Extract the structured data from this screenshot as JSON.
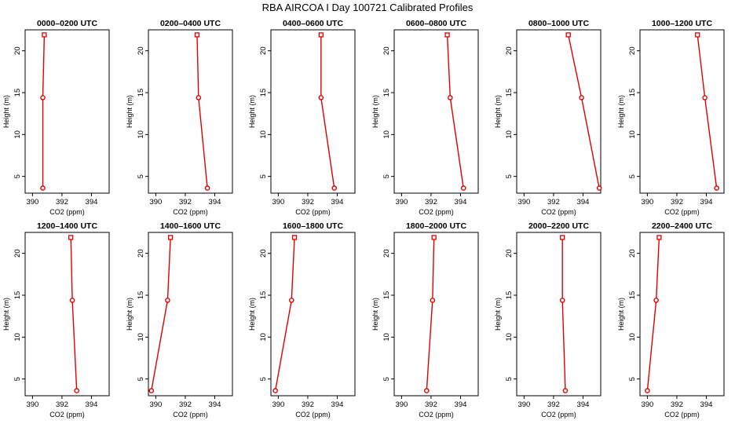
{
  "figure": {
    "title": "RBA AIRCOA I  Day 100721  Calibrated Profiles"
  },
  "colors": {
    "series": "#e00000",
    "axis": "#000000"
  },
  "chart_data": [
    {
      "type": "line",
      "title": "0000–0200 UTC",
      "xlabel": "CO2 (ppm)",
      "ylabel": "Height (m)",
      "xlim": [
        389.5,
        395.2
      ],
      "ylim": [
        3,
        22.5
      ],
      "xticks": [
        390,
        392,
        394
      ],
      "yticks": [
        5,
        10,
        15,
        20
      ],
      "x": [
        390.8,
        390.7,
        390.7
      ],
      "y": [
        21.9,
        14.4,
        3.6
      ]
    },
    {
      "type": "line",
      "title": "0200–0400 UTC",
      "xlabel": "CO2 (ppm)",
      "ylabel": "Height (m)",
      "xlim": [
        389.5,
        395.2
      ],
      "ylim": [
        3,
        22.5
      ],
      "xticks": [
        390,
        392,
        394
      ],
      "yticks": [
        5,
        10,
        15,
        20
      ],
      "x": [
        392.8,
        392.9,
        393.5
      ],
      "y": [
        21.9,
        14.4,
        3.6
      ]
    },
    {
      "type": "line",
      "title": "0400–0600 UTC",
      "xlabel": "CO2 (ppm)",
      "ylabel": "Height (m)",
      "xlim": [
        389.5,
        395.2
      ],
      "ylim": [
        3,
        22.5
      ],
      "xticks": [
        390,
        392,
        394
      ],
      "yticks": [
        5,
        10,
        15,
        20
      ],
      "x": [
        392.9,
        392.9,
        393.8
      ],
      "y": [
        21.9,
        14.4,
        3.6
      ]
    },
    {
      "type": "line",
      "title": "0600–0800 UTC",
      "xlabel": "CO2 (ppm)",
      "ylabel": "Height (m)",
      "xlim": [
        389.5,
        395.2
      ],
      "ylim": [
        3,
        22.5
      ],
      "xticks": [
        390,
        392,
        394
      ],
      "yticks": [
        5,
        10,
        15,
        20
      ],
      "x": [
        393.1,
        393.3,
        394.2
      ],
      "y": [
        21.9,
        14.4,
        3.6
      ]
    },
    {
      "type": "line",
      "title": "0800–1000 UTC",
      "xlabel": "CO2 (ppm)",
      "ylabel": "Height (m)",
      "xlim": [
        389.5,
        395.2
      ],
      "ylim": [
        3,
        22.5
      ],
      "xticks": [
        390,
        392,
        394
      ],
      "yticks": [
        5,
        10,
        15,
        20
      ],
      "x": [
        393.0,
        393.9,
        395.1
      ],
      "y": [
        21.9,
        14.4,
        3.6
      ]
    },
    {
      "type": "line",
      "title": "1000–1200 UTC",
      "xlabel": "CO2 (ppm)",
      "ylabel": "Height (m)",
      "xlim": [
        389.5,
        395.2
      ],
      "ylim": [
        3,
        22.5
      ],
      "xticks": [
        390,
        392,
        394
      ],
      "yticks": [
        5,
        10,
        15,
        20
      ],
      "x": [
        393.4,
        393.9,
        394.7
      ],
      "y": [
        21.9,
        14.4,
        3.6
      ]
    },
    {
      "type": "line",
      "title": "1200–1400 UTC",
      "xlabel": "CO2 (ppm)",
      "ylabel": "Height (m)",
      "xlim": [
        389.5,
        395.2
      ],
      "ylim": [
        3,
        22.5
      ],
      "xticks": [
        390,
        392,
        394
      ],
      "yticks": [
        5,
        10,
        15,
        20
      ],
      "x": [
        392.6,
        392.7,
        393.0
      ],
      "y": [
        21.9,
        14.4,
        3.6
      ]
    },
    {
      "type": "line",
      "title": "1400–1600 UTC",
      "xlabel": "CO2 (ppm)",
      "ylabel": "Height (m)",
      "xlim": [
        389.5,
        395.2
      ],
      "ylim": [
        3,
        22.5
      ],
      "xticks": [
        390,
        392,
        394
      ],
      "yticks": [
        5,
        10,
        15,
        20
      ],
      "x": [
        391.0,
        390.8,
        389.7
      ],
      "y": [
        21.9,
        14.4,
        3.6
      ]
    },
    {
      "type": "line",
      "title": "1600–1800 UTC",
      "xlabel": "CO2 (ppm)",
      "ylabel": "Height (m)",
      "xlim": [
        389.5,
        395.2
      ],
      "ylim": [
        3,
        22.5
      ],
      "xticks": [
        390,
        392,
        394
      ],
      "yticks": [
        5,
        10,
        15,
        20
      ],
      "x": [
        391.1,
        390.9,
        389.8
      ],
      "y": [
        21.9,
        14.4,
        3.6
      ]
    },
    {
      "type": "line",
      "title": "1800–2000 UTC",
      "xlabel": "CO2 (ppm)",
      "ylabel": "Height (m)",
      "xlim": [
        389.5,
        395.2
      ],
      "ylim": [
        3,
        22.5
      ],
      "xticks": [
        390,
        392,
        394
      ],
      "yticks": [
        5,
        10,
        15,
        20
      ],
      "x": [
        392.2,
        392.1,
        391.7
      ],
      "y": [
        21.9,
        14.4,
        3.6
      ]
    },
    {
      "type": "line",
      "title": "2000–2200 UTC",
      "xlabel": "CO2 (ppm)",
      "ylabel": "Height (m)",
      "xlim": [
        389.5,
        395.2
      ],
      "ylim": [
        3,
        22.5
      ],
      "xticks": [
        390,
        392,
        394
      ],
      "yticks": [
        5,
        10,
        15,
        20
      ],
      "x": [
        392.6,
        392.6,
        392.8
      ],
      "y": [
        21.9,
        14.4,
        3.6
      ]
    },
    {
      "type": "line",
      "title": "2200–2400 UTC",
      "xlabel": "CO2 (ppm)",
      "ylabel": "Height (m)",
      "xlim": [
        389.5,
        395.2
      ],
      "ylim": [
        3,
        22.5
      ],
      "xticks": [
        390,
        392,
        394
      ],
      "yticks": [
        5,
        10,
        15,
        20
      ],
      "x": [
        390.8,
        390.6,
        390.0
      ],
      "y": [
        21.9,
        14.4,
        3.6
      ]
    }
  ]
}
